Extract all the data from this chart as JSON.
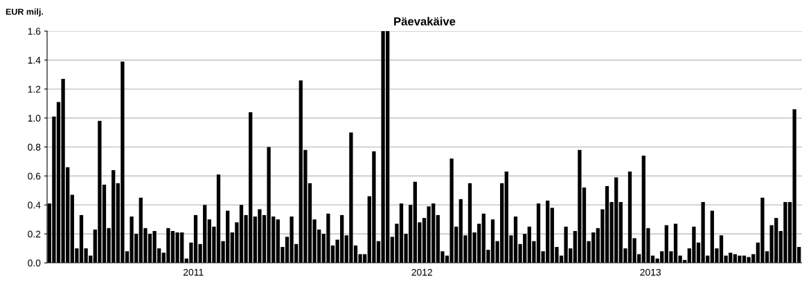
{
  "chart_data": {
    "type": "bar",
    "title": "Päevakäive",
    "ylabel": "EUR milj.",
    "color": "#000000",
    "grid": "y",
    "legend": false,
    "xlim": [
      2010.86,
      2014.163
    ],
    "ylim": [
      0,
      1.6
    ],
    "xticks": [
      {
        "value": 2011.5,
        "label": "2011"
      },
      {
        "value": 2012.5,
        "label": "2012"
      },
      {
        "value": 2013.5,
        "label": "2013"
      }
    ],
    "yticks": [
      {
        "value": 0,
        "label": "0.0"
      },
      {
        "value": 0.2,
        "label": "0.2"
      },
      {
        "value": 0.4,
        "label": "0.4"
      },
      {
        "value": 0.6,
        "label": "0.6"
      },
      {
        "value": 0.8,
        "label": "0.8"
      },
      {
        "value": 1.0,
        "label": "1.0"
      },
      {
        "value": 1.2,
        "label": "1.2"
      },
      {
        "value": 1.4,
        "label": "1.4"
      },
      {
        "value": 1.6,
        "label": "1.6"
      }
    ],
    "x": [
      2010.87,
      2010.89,
      2010.91,
      2010.93,
      2010.95,
      2010.97,
      2010.99,
      2011.01,
      2011.03,
      2011.05,
      2011.07,
      2011.09,
      2011.11,
      2011.13,
      2011.15,
      2011.17,
      2011.19,
      2011.21,
      2011.23,
      2011.25,
      2011.27,
      2011.29,
      2011.31,
      2011.33,
      2011.35,
      2011.37,
      2011.39,
      2011.41,
      2011.43,
      2011.45,
      2011.47,
      2011.49,
      2011.51,
      2011.53,
      2011.55,
      2011.57,
      2011.59,
      2011.61,
      2011.63,
      2011.65,
      2011.67,
      2011.69,
      2011.71,
      2011.73,
      2011.75,
      2011.77,
      2011.79,
      2011.81,
      2011.83,
      2011.85,
      2011.87,
      2011.89,
      2011.91,
      2011.93,
      2011.95,
      2011.97,
      2011.99,
      2012.01,
      2012.03,
      2012.05,
      2012.07,
      2012.09,
      2012.11,
      2012.13,
      2012.15,
      2012.17,
      2012.19,
      2012.21,
      2012.23,
      2012.25,
      2012.27,
      2012.29,
      2012.31,
      2012.33,
      2012.35,
      2012.37,
      2012.39,
      2012.41,
      2012.43,
      2012.45,
      2012.47,
      2012.49,
      2012.51,
      2012.53,
      2012.55,
      2012.57,
      2012.59,
      2012.61,
      2012.63,
      2012.65,
      2012.67,
      2012.69,
      2012.71,
      2012.73,
      2012.75,
      2012.77,
      2012.79,
      2012.81,
      2012.83,
      2012.85,
      2012.87,
      2012.89,
      2012.91,
      2012.93,
      2012.95,
      2012.97,
      2012.99,
      2013.01,
      2013.03,
      2013.05,
      2013.07,
      2013.09,
      2013.11,
      2013.13,
      2013.15,
      2013.17,
      2013.19,
      2013.21,
      2013.23,
      2013.25,
      2013.27,
      2013.29,
      2013.31,
      2013.33,
      2013.35,
      2013.37,
      2013.39,
      2013.41,
      2013.43,
      2013.45,
      2013.47,
      2013.49,
      2013.51,
      2013.53,
      2013.55,
      2013.57,
      2013.59,
      2013.61,
      2013.63,
      2013.65,
      2013.67,
      2013.69,
      2013.71,
      2013.73,
      2013.75,
      2013.77,
      2013.79,
      2013.81,
      2013.83,
      2013.85,
      2013.87,
      2013.89,
      2013.91,
      2013.93,
      2013.95,
      2013.97,
      2013.99,
      2014.01,
      2014.03,
      2014.05,
      2014.07,
      2014.09,
      2014.11,
      2014.13,
      2014.15
    ],
    "values": [
      0.41,
      1.01,
      1.11,
      1.27,
      0.66,
      0.47,
      0.1,
      0.33,
      0.1,
      0.05,
      0.23,
      0.98,
      0.54,
      0.24,
      0.64,
      0.55,
      1.39,
      0.08,
      0.32,
      0.2,
      0.45,
      0.24,
      0.2,
      0.22,
      0.1,
      0.07,
      0.24,
      0.22,
      0.21,
      0.21,
      0.03,
      0.14,
      0.33,
      0.13,
      0.4,
      0.3,
      0.25,
      0.61,
      0.15,
      0.36,
      0.21,
      0.28,
      0.4,
      0.33,
      1.04,
      0.32,
      0.37,
      0.33,
      0.8,
      0.32,
      0.3,
      0.11,
      0.18,
      0.32,
      0.13,
      1.26,
      0.78,
      0.55,
      0.3,
      0.23,
      0.2,
      0.34,
      0.12,
      0.16,
      0.33,
      0.19,
      0.9,
      0.12,
      0.06,
      0.06,
      0.46,
      0.77,
      0.15,
      1.6,
      1.6,
      0.18,
      0.27,
      0.41,
      0.2,
      0.4,
      0.56,
      0.28,
      0.31,
      0.39,
      0.41,
      0.33,
      0.08,
      0.05,
      0.72,
      0.25,
      0.44,
      0.19,
      0.55,
      0.21,
      0.27,
      0.34,
      0.09,
      0.3,
      0.15,
      0.55,
      0.63,
      0.19,
      0.32,
      0.13,
      0.2,
      0.25,
      0.15,
      0.41,
      0.08,
      0.43,
      0.38,
      0.11,
      0.05,
      0.25,
      0.1,
      0.22,
      0.78,
      0.52,
      0.15,
      0.21,
      0.24,
      0.37,
      0.53,
      0.42,
      0.59,
      0.42,
      0.1,
      0.63,
      0.17,
      0.06,
      0.74,
      0.24,
      0.05,
      0.03,
      0.08,
      0.26,
      0.08,
      0.27,
      0.05,
      0.02,
      0.1,
      0.25,
      0.14,
      0.42,
      0.05,
      0.36,
      0.1,
      0.19,
      0.05,
      0.07,
      0.06,
      0.05,
      0.05,
      0.04,
      0.06,
      0.14,
      0.45,
      0.08,
      0.26,
      0.31,
      0.22,
      0.42,
      0.42,
      1.06,
      0.11
    ]
  }
}
